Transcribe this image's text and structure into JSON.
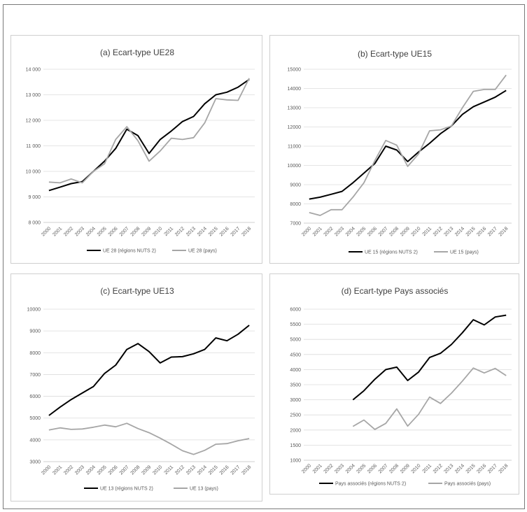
{
  "chart_data": [
    {
      "type": "line",
      "title": "(a) Ecart-type UE28",
      "x": [
        "2000",
        "2001",
        "2002",
        "2003",
        "2004",
        "2005",
        "2006",
        "2007",
        "2008",
        "2009",
        "2010",
        "2011",
        "2012",
        "2013",
        "2014",
        "2015",
        "2016",
        "2017",
        "2018"
      ],
      "y_ticks": [
        "8 000",
        "9 000",
        "10 000",
        "11 000",
        "12 000",
        "13 000",
        "14 000"
      ],
      "ylim": [
        8000,
        14000
      ],
      "grid": true,
      "legend_position": "bottom",
      "series": [
        {
          "name": "UE 28 (régions NUTS 2)",
          "color": "#000000",
          "values": [
            9250,
            9380,
            9520,
            9600,
            10000,
            10400,
            10900,
            11650,
            11400,
            10700,
            11250,
            11580,
            11950,
            12150,
            12650,
            13000,
            13100,
            13300,
            13600
          ]
        },
        {
          "name": "UE 28 (pays)",
          "color": "#a6a6a6",
          "values": [
            9580,
            9550,
            9700,
            9550,
            10000,
            10300,
            11250,
            11750,
            11200,
            10400,
            10800,
            11300,
            11250,
            11320,
            11900,
            12850,
            12800,
            12780,
            13650
          ]
        }
      ]
    },
    {
      "type": "line",
      "title": "(b) Ecart-type UE15",
      "x": [
        "2000",
        "2001",
        "2002",
        "2003",
        "2004",
        "2005",
        "2006",
        "2007",
        "2008",
        "2009",
        "2010",
        "2011",
        "2012",
        "2013",
        "2014",
        "2015",
        "2016",
        "2017",
        "2018"
      ],
      "y_ticks": [
        "7000",
        "8000",
        "9000",
        "10000",
        "11000",
        "12000",
        "13000",
        "14000",
        "15000"
      ],
      "ylim": [
        7000,
        15000
      ],
      "grid": true,
      "legend_position": "bottom",
      "series": [
        {
          "name": "UE 15 (régions NUTS 2)",
          "color": "#000000",
          "values": [
            8250,
            8350,
            8500,
            8650,
            9100,
            9600,
            10100,
            11000,
            10800,
            10200,
            10700,
            11150,
            11650,
            12050,
            12650,
            13050,
            13300,
            13550,
            13900
          ]
        },
        {
          "name": "UE 15 (pays)",
          "color": "#a6a6a6",
          "values": [
            7550,
            7400,
            7700,
            7700,
            8350,
            9100,
            10250,
            11300,
            11050,
            9950,
            10600,
            11800,
            11850,
            12050,
            13000,
            13850,
            13950,
            13950,
            14700
          ]
        }
      ]
    },
    {
      "type": "line",
      "title": "(c) Ecart-type UE13",
      "x": [
        "2000",
        "2001",
        "2002",
        "2003",
        "2004",
        "2005",
        "2006",
        "2007",
        "2008",
        "2009",
        "2010",
        "2011",
        "2012",
        "2013",
        "2014",
        "2015",
        "2016",
        "2017",
        "2018"
      ],
      "y_ticks": [
        "3000",
        "4000",
        "5000",
        "6000",
        "7000",
        "8000",
        "9000",
        "10000"
      ],
      "ylim": [
        3000,
        10000
      ],
      "grid": true,
      "legend_position": "bottom",
      "series": [
        {
          "name": "UE 13 (régions NUTS 2)",
          "color": "#000000",
          "values": [
            5120,
            5500,
            5850,
            6150,
            6450,
            7050,
            7430,
            8150,
            8420,
            8050,
            7530,
            7800,
            7820,
            7950,
            8150,
            8680,
            8550,
            8850,
            9260
          ]
        },
        {
          "name": "UE 13 (pays)",
          "color": "#a6a6a6",
          "values": [
            4450,
            4550,
            4480,
            4500,
            4580,
            4680,
            4600,
            4760,
            4520,
            4330,
            4080,
            3800,
            3500,
            3330,
            3520,
            3800,
            3830,
            3960,
            4060
          ]
        }
      ]
    },
    {
      "type": "line",
      "title": "(d) Ecart-type Pays associés",
      "x": [
        "2000",
        "2001",
        "2002",
        "2003",
        "2004",
        "2005",
        "2006",
        "2007",
        "2008",
        "2009",
        "2010",
        "2011",
        "2012",
        "2013",
        "2014",
        "2015",
        "2016",
        "2017",
        "2018"
      ],
      "y_ticks": [
        "1000",
        "1500",
        "2000",
        "2500",
        "3000",
        "3500",
        "4000",
        "4500",
        "5000",
        "5500",
        "6000"
      ],
      "ylim": [
        1000,
        6000
      ],
      "grid": true,
      "legend_position": "bottom",
      "series": [
        {
          "name": "Pays associés (régions NUTS 2)",
          "color": "#000000",
          "values": [
            null,
            null,
            null,
            null,
            3000,
            3300,
            3680,
            4000,
            4080,
            3640,
            3920,
            4400,
            4540,
            4830,
            5220,
            5650,
            5480,
            5740,
            5800
          ]
        },
        {
          "name": "Pays associés (pays)",
          "color": "#a6a6a6",
          "values": [
            null,
            null,
            null,
            null,
            2120,
            2330,
            2020,
            2220,
            2700,
            2130,
            2520,
            3090,
            2880,
            3220,
            3620,
            4050,
            3890,
            4040,
            3800
          ]
        }
      ]
    }
  ]
}
